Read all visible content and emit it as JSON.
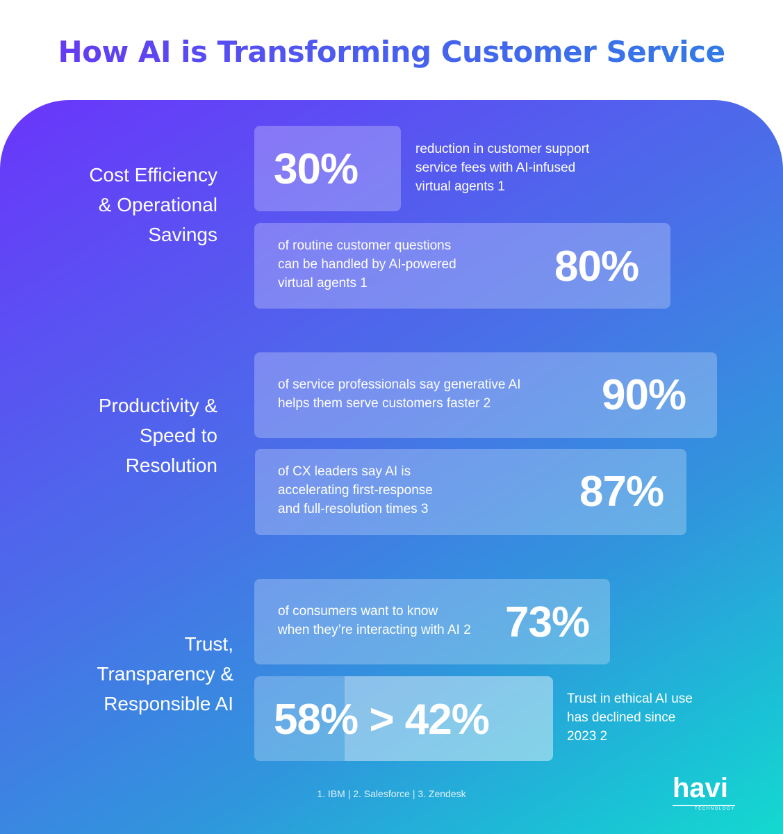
{
  "title": "How AI is Transforming Customer Service",
  "sections": [
    {
      "label": "Cost Efficiency\n& Operational\nSavings",
      "stats": [
        {
          "value": "30%",
          "text": "reduction in customer support\nservice fees with AI-infused\nvirtual agents 1"
        },
        {
          "value": "80%",
          "text": "of routine customer questions\ncan be handled by AI-powered\nvirtual agents 1"
        }
      ]
    },
    {
      "label": "Productivity &\nSpeed to\nResolution",
      "stats": [
        {
          "value": "90%",
          "text": "of service professionals say generative AI\nhelps them serve customers faster 2"
        },
        {
          "value": "87%",
          "text": "of CX leaders say AI is\naccelerating first-response\nand full-resolution times 3"
        }
      ]
    },
    {
      "label": "Trust,\nTransparency &\nResponsible AI",
      "stats": [
        {
          "value": "73%",
          "text": "of consumers want to know\nwhen they’re interacting with AI 2"
        },
        {
          "value": "58% > 42%",
          "text": "Trust in ethical AI use\nhas declined since\n2023 2"
        }
      ]
    }
  ],
  "sources": "1. IBM | 2. Salesforce | 3. Zendesk",
  "logo": {
    "word": "havi",
    "sub": "TECHNOLOGY"
  },
  "colors": {
    "gradient_start": "#6a35fb",
    "gradient_end": "#14d9cf",
    "title_start": "#6a35f2",
    "title_end": "#2f7fe6"
  }
}
